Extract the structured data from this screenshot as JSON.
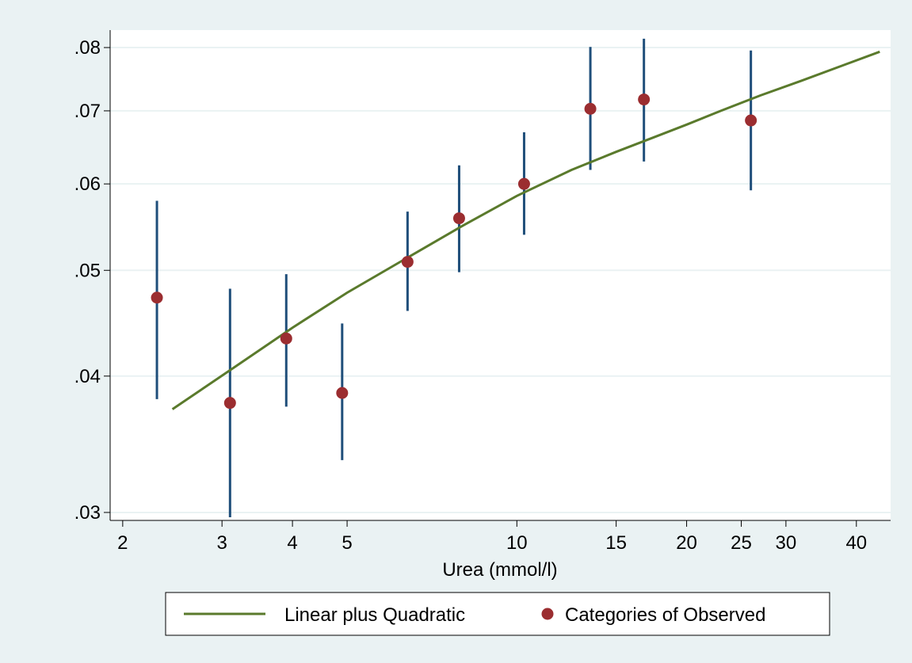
{
  "chart_data": {
    "type": "scatter",
    "xlabel": "Urea (mmol/l)",
    "ylabel": "",
    "x_scale": "log",
    "y_scale": "log",
    "xlim": [
      1.9,
      46
    ],
    "ylim": [
      0.0295,
      0.083
    ],
    "x_ticks": [
      2,
      3,
      4,
      5,
      10,
      15,
      20,
      25,
      30,
      40
    ],
    "y_ticks": [
      0.03,
      0.04,
      0.05,
      0.06,
      0.07,
      0.08
    ],
    "y_tick_labels": [
      ".03",
      ".04",
      ".05",
      ".06",
      ".07",
      ".08"
    ],
    "grid": true,
    "legend_position": "bottom",
    "colors": {
      "background": "#eaf2f3",
      "plot": "#ffffff",
      "curve": "#5a7a2c",
      "points": "#9b2d30",
      "error_bars": "#1f4e7a",
      "grid": "#eaf2f3"
    },
    "series": [
      {
        "name": "Linear plus Quadratic",
        "kind": "line",
        "x": [
          2.45,
          3.1,
          4.0,
          5.0,
          6.5,
          8.0,
          10.0,
          12.5,
          15.0,
          17.5,
          20.0,
          23.0,
          27.0,
          32.0,
          38.0,
          44.0
        ],
        "y": [
          0.0373,
          0.0405,
          0.0443,
          0.0477,
          0.0516,
          0.0549,
          0.0585,
          0.0618,
          0.0642,
          0.0662,
          0.068,
          0.07,
          0.0723,
          0.0746,
          0.0771,
          0.0793
        ]
      },
      {
        "name": "Categories of Observed",
        "kind": "points",
        "x": [
          2.3,
          3.1,
          3.9,
          4.9,
          6.4,
          7.9,
          10.3,
          13.5,
          16.8,
          26.0
        ],
        "y": [
          0.0472,
          0.0378,
          0.0433,
          0.0386,
          0.0509,
          0.0558,
          0.06,
          0.0703,
          0.0717,
          0.0686
        ],
        "lower": [
          0.0381,
          0.0297,
          0.0375,
          0.0335,
          0.0459,
          0.0498,
          0.0539,
          0.0618,
          0.0629,
          0.0592
        ],
        "upper": [
          0.0579,
          0.0481,
          0.0496,
          0.0447,
          0.0566,
          0.0624,
          0.0669,
          0.0801,
          0.0815,
          0.0795
        ]
      }
    ]
  }
}
